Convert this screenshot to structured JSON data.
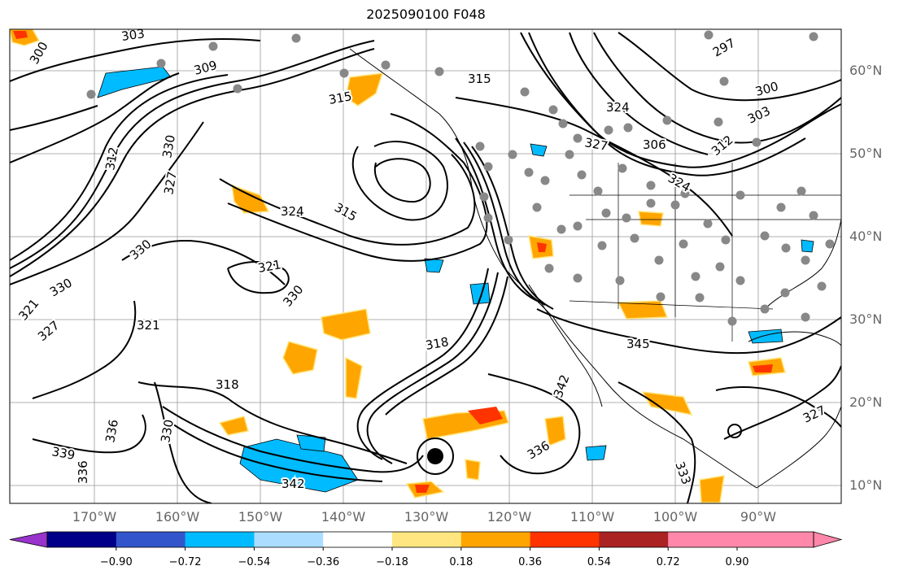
{
  "title": "2025090100 F048",
  "map": {
    "lat_labels": [
      "60°N",
      "50°N",
      "40°N",
      "30°N",
      "20°N",
      "10°N"
    ],
    "lon_labels": [
      "170°W",
      "160°W",
      "150°W",
      "140°W",
      "130°W",
      "120°W",
      "110°W",
      "100°W",
      "90°W"
    ],
    "contour_labels": [
      "303",
      "300",
      "309",
      "315",
      "312",
      "330",
      "327",
      "315",
      "330",
      "321",
      "324",
      "315",
      "324",
      "327",
      "306",
      "297",
      "300",
      "303",
      "312",
      "324",
      "330",
      "327",
      "321",
      "330",
      "318",
      "330",
      "345",
      "342",
      "336",
      "339",
      "333",
      "336",
      "342",
      "327",
      "318",
      "321",
      "336"
    ]
  },
  "colorbar": {
    "ticks": [
      "−0.90",
      "−0.72",
      "−0.54",
      "−0.36",
      "−0.18",
      "0.18",
      "0.36",
      "0.54",
      "0.72",
      "0.90"
    ],
    "colors": [
      "#9933cc",
      "#000088",
      "#3355cc",
      "#00bbff",
      "#aaddff",
      "#ffffff",
      "#ffe680",
      "#ffa500",
      "#ff3300",
      "#aa2222",
      "#ff88aa"
    ]
  }
}
